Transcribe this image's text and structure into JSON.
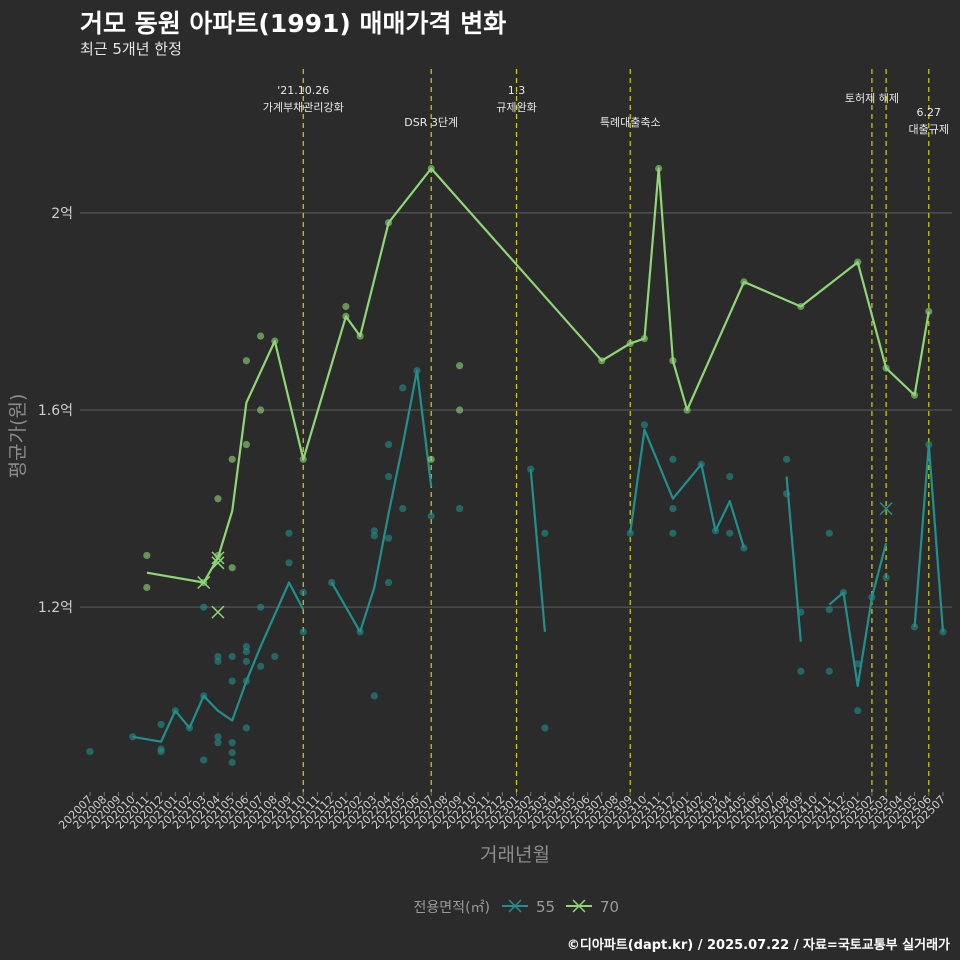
{
  "chart_data": {
    "type": "line",
    "title": "거모 동원 아파트(1991) 매매가격 변화",
    "subtitle": "최근 5개년 한정",
    "xlabel": "거래년월",
    "ylabel": "평균가(원)",
    "caption": "©디아파트(dapt.kr) / 2025.07.22 / 자료=국토교통부 실거래가",
    "legend_title": "전용면적(㎡)",
    "legend_position": "bottom",
    "grid": "horizontal major",
    "ylim": [
      0.825,
      2.3
    ],
    "y_unit": "억",
    "yticks": [
      {
        "value": 1.2,
        "label": "1.2억"
      },
      {
        "value": 1.6,
        "label": "1.6억"
      },
      {
        "value": 2.0,
        "label": "2억"
      }
    ],
    "categories": [
      "202007",
      "202008",
      "202009",
      "202010",
      "202011",
      "202012",
      "202101",
      "202102",
      "202103",
      "202104",
      "202105",
      "202106",
      "202107",
      "202108",
      "202109",
      "202110",
      "202111",
      "202112",
      "202201",
      "202202",
      "202203",
      "202204",
      "202205",
      "202206",
      "202207",
      "202208",
      "202209",
      "202210",
      "202211",
      "202212",
      "202301",
      "202302",
      "202303",
      "202304",
      "202305",
      "202306",
      "202307",
      "202308",
      "202309",
      "202310",
      "202311",
      "202312",
      "202401",
      "202402",
      "202403",
      "202404",
      "202405",
      "202406",
      "202407",
      "202408",
      "202409",
      "202410",
      "202411",
      "202412",
      "202501",
      "202502",
      "202503",
      "202504",
      "202505",
      "202506",
      "202507"
    ],
    "events": [
      {
        "month": "202110",
        "label": "'21.10.26\n가계부채관리강화",
        "row": 0
      },
      {
        "month": "202207",
        "label": "DSR 3단계",
        "row": 2
      },
      {
        "month": "202301",
        "label": "1.3\n규제완화",
        "row": 0
      },
      {
        "month": "202309",
        "label": "특례대출축소",
        "row": 2
      },
      {
        "month": "202502",
        "label": "토허제 해제",
        "row": 1
      },
      {
        "month": "202503",
        "label": "",
        "row": 0
      },
      {
        "month": "202506",
        "label": "6.27\n대출규제",
        "row": 3
      }
    ],
    "series": [
      {
        "name": "55",
        "color": "#21908c",
        "line": [
          [
            [
              "202010",
              0.937
            ],
            [
              "202012",
              0.927
            ],
            [
              "202101",
              0.99
            ],
            [
              "202102",
              0.955
            ],
            [
              "202103",
              1.02
            ],
            [
              "202104",
              0.99
            ],
            [
              "202105",
              0.97
            ],
            [
              "202106",
              1.05
            ],
            [
              "202107",
              1.12
            ],
            [
              "202109",
              1.25
            ],
            [
              "202110",
              1.195
            ]
          ],
          [
            [
              "202112",
              1.25
            ],
            [
              "202202",
              1.15
            ],
            [
              "202203",
              1.24
            ],
            [
              "202204",
              1.39
            ],
            [
              "202205",
              1.53
            ],
            [
              "202206",
              1.68
            ],
            [
              "202207",
              1.445
            ]
          ],
          [
            [
              "202302",
              1.48
            ],
            [
              "202303",
              1.15
            ]
          ],
          [
            [
              "202309",
              1.35
            ],
            [
              "202310",
              1.56
            ],
            [
              "202312",
              1.42
            ],
            [
              "202402",
              1.49
            ],
            [
              "202403",
              1.355
            ],
            [
              "202404",
              1.415
            ],
            [
              "202405",
              1.32
            ]
          ],
          [
            [
              "202408",
              1.465
            ],
            [
              "202409",
              1.13
            ]
          ],
          [
            [
              "202411",
              1.205
            ],
            [
              "202412",
              1.23
            ],
            [
              "202501",
              1.04
            ],
            [
              "202502",
              1.22
            ],
            [
              "202503",
              1.33
            ]
          ],
          [
            [
              "202505",
              1.16
            ],
            [
              "202506",
              1.53
            ],
            [
              "202507",
              1.15
            ]
          ]
        ],
        "points": [
          [
            "202007",
            0.907
          ],
          [
            "202010",
            0.937
          ],
          [
            "202012",
            0.912
          ],
          [
            "202012",
            0.907
          ],
          [
            "202012",
            0.962
          ],
          [
            "202101",
            0.99
          ],
          [
            "202102",
            0.955
          ],
          [
            "202103",
            1.2
          ],
          [
            "202103",
            0.89
          ],
          [
            "202103",
            1.02
          ],
          [
            "202104",
            1.09
          ],
          [
            "202104",
            1.1
          ],
          [
            "202104",
            0.925
          ],
          [
            "202104",
            0.937
          ],
          [
            "202105",
            1.05
          ],
          [
            "202105",
            1.1
          ],
          [
            "202105",
            0.905
          ],
          [
            "202105",
            0.885
          ],
          [
            "202105",
            0.925
          ],
          [
            "202106",
            1.11
          ],
          [
            "202106",
            1.12
          ],
          [
            "202106",
            1.09
          ],
          [
            "202106",
            1.05
          ],
          [
            "202106",
            0.955
          ],
          [
            "202107",
            1.08
          ],
          [
            "202107",
            1.2
          ],
          [
            "202108",
            1.1
          ],
          [
            "202109",
            1.35
          ],
          [
            "202109",
            1.29
          ],
          [
            "202110",
            1.15
          ],
          [
            "202110",
            1.23
          ],
          [
            "202112",
            1.25
          ],
          [
            "202202",
            1.15
          ],
          [
            "202203",
            1.345
          ],
          [
            "202203",
            1.355
          ],
          [
            "202203",
            1.02
          ],
          [
            "202204",
            1.34
          ],
          [
            "202204",
            1.465
          ],
          [
            "202204",
            1.25
          ],
          [
            "202204",
            1.53
          ],
          [
            "202205",
            1.645
          ],
          [
            "202205",
            1.4
          ],
          [
            "202206",
            1.68
          ],
          [
            "202207",
            1.385
          ],
          [
            "202209",
            1.4
          ],
          [
            "202302",
            1.48
          ],
          [
            "202303",
            1.35
          ],
          [
            "202303",
            0.955
          ],
          [
            "202309",
            1.35
          ],
          [
            "202310",
            1.57
          ],
          [
            "202312",
            1.5
          ],
          [
            "202312",
            1.35
          ],
          [
            "202312",
            1.4
          ],
          [
            "202402",
            1.49
          ],
          [
            "202403",
            1.355
          ],
          [
            "202404",
            1.465
          ],
          [
            "202404",
            1.35
          ],
          [
            "202405",
            1.32
          ],
          [
            "202408",
            1.5
          ],
          [
            "202408",
            1.43
          ],
          [
            "202409",
            1.19
          ],
          [
            "202409",
            1.07
          ],
          [
            "202411",
            1.195
          ],
          [
            "202411",
            1.07
          ],
          [
            "202411",
            1.35
          ],
          [
            "202412",
            1.23
          ],
          [
            "202501",
            1.085
          ],
          [
            "202501",
            0.99
          ],
          [
            "202502",
            1.22
          ],
          [
            "202503",
            1.26
          ],
          [
            "202505",
            1.16
          ],
          [
            "202506",
            1.53
          ],
          [
            "202507",
            1.15
          ]
        ],
        "x_markers": [
          [
            "202503",
            1.4
          ]
        ]
      },
      {
        "name": "70",
        "color": "#8fd776",
        "line": [
          [
            [
              "202011",
              1.27
            ],
            [
              "202103",
              1.25
            ],
            [
              "202104",
              1.3
            ],
            [
              "202105",
              1.395
            ],
            [
              "202106",
              1.615
            ],
            [
              "202108",
              1.74
            ],
            [
              "202110",
              1.5
            ],
            [
              "202201",
              1.79
            ],
            [
              "202202",
              1.75
            ],
            [
              "202204",
              1.98
            ],
            [
              "202207",
              2.09
            ],
            [
              "202307",
              1.7
            ],
            [
              "202309",
              1.735
            ],
            [
              "202310",
              1.745
            ],
            [
              "202311",
              2.09
            ],
            [
              "202312",
              1.7
            ],
            [
              "202401",
              1.6
            ],
            [
              "202405",
              1.86
            ],
            [
              "202409",
              1.81
            ],
            [
              "202501",
              1.9
            ],
            [
              "202503",
              1.685
            ],
            [
              "202505",
              1.63
            ],
            [
              "202506",
              1.8
            ]
          ]
        ],
        "points": [
          [
            "202011",
            1.305
          ],
          [
            "202011",
            1.24
          ],
          [
            "202103",
            1.25
          ],
          [
            "202104",
            1.42
          ],
          [
            "202104",
            1.305
          ],
          [
            "202105",
            1.5
          ],
          [
            "202105",
            1.28
          ],
          [
            "202106",
            1.7
          ],
          [
            "202106",
            1.53
          ],
          [
            "202107",
            1.75
          ],
          [
            "202107",
            1.6
          ],
          [
            "202108",
            1.74
          ],
          [
            "202110",
            1.5
          ],
          [
            "202201",
            1.81
          ],
          [
            "202201",
            1.79
          ],
          [
            "202202",
            1.75
          ],
          [
            "202204",
            1.98
          ],
          [
            "202207",
            2.09
          ],
          [
            "202207",
            1.5
          ],
          [
            "202209",
            1.69
          ],
          [
            "202209",
            1.6
          ],
          [
            "202307",
            1.7
          ],
          [
            "202309",
            1.735
          ],
          [
            "202310",
            1.745
          ],
          [
            "202311",
            2.09
          ],
          [
            "202312",
            1.7
          ],
          [
            "202401",
            1.6
          ],
          [
            "202405",
            1.86
          ],
          [
            "202409",
            1.81
          ],
          [
            "202501",
            1.9
          ],
          [
            "202503",
            1.685
          ],
          [
            "202505",
            1.63
          ],
          [
            "202506",
            1.8
          ]
        ],
        "x_markers": [
          [
            "202103",
            1.25
          ],
          [
            "202104",
            1.3
          ],
          [
            "202104",
            1.29
          ],
          [
            "202104",
            1.19
          ]
        ]
      }
    ]
  }
}
